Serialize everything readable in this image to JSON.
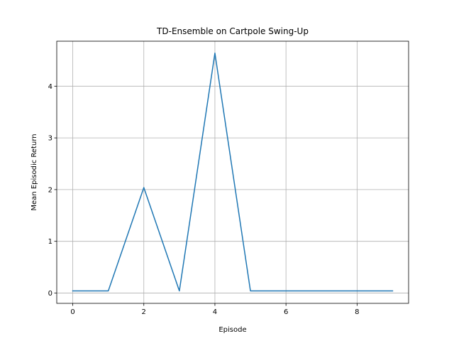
{
  "chart_data": {
    "type": "line",
    "title": "TD-Ensemble on Cartpole Swing-Up",
    "xlabel": "Episode",
    "ylabel": "Mean Episodic Return",
    "xlim": [
      -0.45,
      9.45
    ],
    "ylim": [
      -0.2,
      4.87
    ],
    "xticks": [
      0,
      2,
      4,
      6,
      8
    ],
    "yticks": [
      0,
      1,
      2,
      3,
      4
    ],
    "grid": true,
    "series": [
      {
        "color": "#1f77b4",
        "x": [
          0,
          1,
          2,
          3,
          4,
          5,
          6,
          7,
          8,
          9
        ],
        "y": [
          0.04,
          0.04,
          2.04,
          0.04,
          4.64,
          0.04,
          0.04,
          0.04,
          0.04,
          0.04
        ]
      }
    ]
  }
}
